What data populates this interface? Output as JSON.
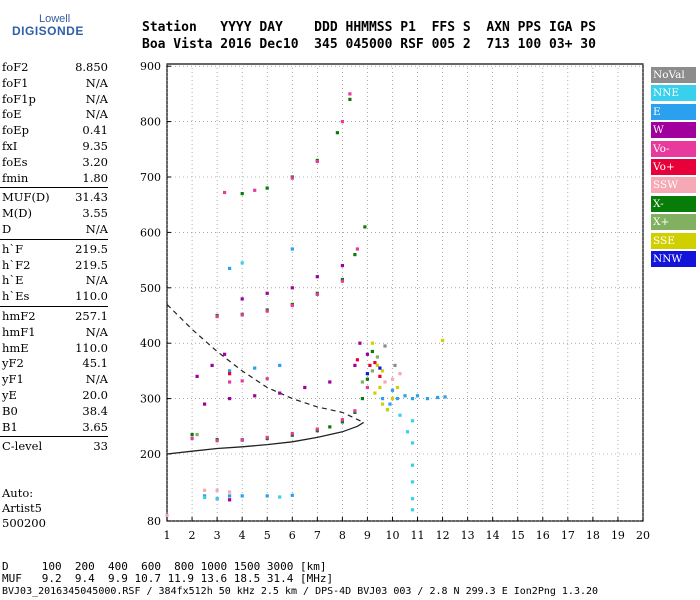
{
  "logo": {
    "line1": "Lowell",
    "line2": "DIGISONDE"
  },
  "header": {
    "row1": "Station   YYYY DAY    DDD HHMMSS P1  FFS S  AXN PPS IGA PS",
    "row2": "Boa Vista 2016 Dec10  345 045000 RSF 005 2  713 100 03+ 30"
  },
  "params": [
    {
      "name": "foF2",
      "value": "8.850"
    },
    {
      "name": "foF1",
      "value": "N/A"
    },
    {
      "name": "foF1p",
      "value": "N/A"
    },
    {
      "name": "foE",
      "value": "N/A"
    },
    {
      "name": "foEp",
      "value": "0.41"
    },
    {
      "name": "fxI",
      "value": "9.35"
    },
    {
      "name": "foEs",
      "value": "3.20"
    },
    {
      "name": "fmin",
      "value": "1.80"
    },
    {
      "name": "MUF(D)",
      "value": "31.43"
    },
    {
      "name": "M(D)",
      "value": "3.55"
    },
    {
      "name": "D",
      "value": "N/A"
    },
    {
      "name": "h`F",
      "value": "219.5"
    },
    {
      "name": "h`F2",
      "value": "219.5"
    },
    {
      "name": "h`E",
      "value": "N/A"
    },
    {
      "name": "h`Es",
      "value": "110.0"
    },
    {
      "name": "hmF2",
      "value": "257.1"
    },
    {
      "name": "hmF1",
      "value": "N/A"
    },
    {
      "name": "hmE",
      "value": "110.0"
    },
    {
      "name": "yF2",
      "value": "45.1"
    },
    {
      "name": "yF1",
      "value": "N/A"
    },
    {
      "name": "yE",
      "value": "20.0"
    },
    {
      "name": "B0",
      "value": "38.4"
    },
    {
      "name": "B1",
      "value": "3.65"
    },
    {
      "name": "C-level",
      "value": "33"
    }
  ],
  "autoscaling": {
    "line1": "Auto:",
    "line2": "Artist5",
    "line3": "500200"
  },
  "footer": {
    "d_row": "D     100  200  400  600  800 1000 1500 3000 [km]",
    "muf_row": "MUF   9.2  9.4  9.9 10.7 11.9 13.6 18.5 31.4 [MHz]",
    "info_row": "BVJ03_2016345045000.RSF / 384fx512h 50 kHz 2.5 km / DPS-4D BVJ03 003 / 2.8 N 299.3 E Ion2Png 1.3.20"
  },
  "legend": [
    {
      "label": "NoVal",
      "color": "#8c8c8c"
    },
    {
      "label": "NNE",
      "color": "#38d0ec"
    },
    {
      "label": "E",
      "color": "#2aa0ee"
    },
    {
      "label": "W",
      "color": "#a0009c"
    },
    {
      "label": "Vo-",
      "color": "#e83a9c"
    },
    {
      "label": "Vo+",
      "color": "#e8003a"
    },
    {
      "label": "SSW",
      "color": "#f6a8b4"
    },
    {
      "label": "X-",
      "color": "#087c08"
    },
    {
      "label": "X+",
      "color": "#80b060"
    },
    {
      "label": "SSE",
      "color": "#d0d000"
    },
    {
      "label": "NNW",
      "color": "#1414d8"
    }
  ],
  "chart_data": {
    "type": "scatter",
    "xlabel": "",
    "ylabel": "",
    "xlim": [
      1,
      20
    ],
    "ylim": [
      80,
      900
    ],
    "x_ticks": [
      "1",
      "2",
      "3",
      "4",
      "5",
      "6",
      "7",
      "8",
      "9",
      "10",
      "11",
      "12",
      "13",
      "14",
      "15",
      "16",
      "17",
      "18",
      "19",
      "20"
    ],
    "y_ticks": [
      "80",
      "200",
      "300",
      "400",
      "500",
      "600",
      "700",
      "800",
      "900"
    ],
    "grid": true,
    "legend_position": "right",
    "series": [
      {
        "name": "X-",
        "points": [
          [
            2.0,
            235
          ],
          [
            3.0,
            226
          ],
          [
            4.0,
            225
          ],
          [
            5.0,
            228
          ],
          [
            6.0,
            234
          ],
          [
            7.0,
            242
          ],
          [
            7.5,
            249
          ],
          [
            8.0,
            258
          ],
          [
            8.5,
            275
          ],
          [
            8.8,
            300
          ],
          [
            9.0,
            335
          ],
          [
            9.2,
            385
          ],
          [
            3.0,
            450
          ],
          [
            4.0,
            452
          ],
          [
            5.0,
            460
          ],
          [
            6.0,
            470
          ],
          [
            7.0,
            490
          ],
          [
            8.0,
            515
          ],
          [
            8.5,
            560
          ],
          [
            8.9,
            610
          ],
          [
            4.0,
            670
          ],
          [
            5.0,
            680
          ],
          [
            6.0,
            700
          ],
          [
            7.0,
            730
          ],
          [
            7.8,
            780
          ],
          [
            8.3,
            840
          ]
        ]
      },
      {
        "name": "Vo-",
        "points": [
          [
            2.0,
            228
          ],
          [
            3.0,
            224
          ],
          [
            4.0,
            226
          ],
          [
            5.0,
            230
          ],
          [
            6.0,
            237
          ],
          [
            7.0,
            245
          ],
          [
            8.0,
            262
          ],
          [
            8.5,
            278
          ],
          [
            9.0,
            320
          ],
          [
            3.0,
            448
          ],
          [
            4.0,
            451
          ],
          [
            5.0,
            458
          ],
          [
            6.0,
            468
          ],
          [
            7.0,
            488
          ],
          [
            8.0,
            512
          ],
          [
            8.6,
            570
          ],
          [
            3.5,
            330
          ],
          [
            4.0,
            332
          ],
          [
            5.0,
            336
          ],
          [
            3.3,
            672
          ],
          [
            4.5,
            676
          ],
          [
            6.0,
            698
          ],
          [
            7.0,
            728
          ],
          [
            8.0,
            800
          ],
          [
            8.3,
            850
          ]
        ]
      },
      {
        "name": "W",
        "points": [
          [
            2.5,
            290
          ],
          [
            3.5,
            300
          ],
          [
            4.5,
            305
          ],
          [
            5.5,
            310
          ],
          [
            6.5,
            320
          ],
          [
            7.5,
            330
          ],
          [
            8.5,
            360
          ],
          [
            2.2,
            340
          ],
          [
            2.8,
            360
          ],
          [
            3.3,
            380
          ],
          [
            4.0,
            480
          ],
          [
            5.0,
            490
          ],
          [
            6.0,
            500
          ],
          [
            7.0,
            520
          ],
          [
            8.0,
            540
          ],
          [
            3.0,
            120
          ],
          [
            3.5,
            118
          ],
          [
            9.0,
            380
          ],
          [
            8.7,
            400
          ]
        ]
      },
      {
        "name": "E",
        "points": [
          [
            9.6,
            300
          ],
          [
            9.9,
            290
          ],
          [
            10.2,
            300
          ],
          [
            10.5,
            305
          ],
          [
            10.8,
            300
          ],
          [
            11.0,
            305
          ],
          [
            11.4,
            300
          ],
          [
            11.8,
            302
          ],
          [
            12.1,
            303
          ],
          [
            10.0,
            315
          ],
          [
            2.5,
            125
          ],
          [
            3.5,
            125
          ],
          [
            4.0,
            125
          ],
          [
            5.0,
            125
          ],
          [
            6.0,
            126
          ],
          [
            3.5,
            350
          ],
          [
            4.5,
            355
          ],
          [
            5.5,
            360
          ],
          [
            3.5,
            535
          ],
          [
            6.0,
            570
          ]
        ]
      },
      {
        "name": "NNE",
        "points": [
          [
            10.8,
            260
          ],
          [
            10.8,
            220
          ],
          [
            10.8,
            180
          ],
          [
            10.8,
            150
          ],
          [
            10.8,
            120
          ],
          [
            10.8,
            100
          ],
          [
            10.3,
            270
          ],
          [
            10.6,
            240
          ],
          [
            9.8,
            280
          ],
          [
            2.5,
            122
          ],
          [
            3.0,
            120
          ],
          [
            5.5,
            123
          ],
          [
            4.0,
            545
          ]
        ]
      },
      {
        "name": "SSE",
        "points": [
          [
            9.3,
            310
          ],
          [
            9.5,
            320
          ],
          [
            9.6,
            290
          ],
          [
            9.8,
            280
          ],
          [
            10.0,
            300
          ],
          [
            9.4,
            360
          ],
          [
            9.6,
            350
          ],
          [
            10.2,
            320
          ],
          [
            12.0,
            405
          ],
          [
            9.2,
            400
          ]
        ]
      },
      {
        "name": "SSW",
        "points": [
          [
            9.5,
            340
          ],
          [
            9.7,
            330
          ],
          [
            10.0,
            335
          ],
          [
            10.3,
            345
          ],
          [
            2.5,
            135
          ],
          [
            3.0,
            135
          ],
          [
            3.5,
            132
          ],
          [
            1.0,
            90
          ]
        ]
      },
      {
        "name": "Vo+",
        "points": [
          [
            9.1,
            360
          ],
          [
            9.3,
            365
          ],
          [
            9.5,
            340
          ],
          [
            3.5,
            345
          ],
          [
            8.6,
            370
          ]
        ]
      },
      {
        "name": "X+",
        "points": [
          [
            9.2,
            350
          ],
          [
            9.4,
            375
          ],
          [
            2.2,
            235
          ],
          [
            8.8,
            330
          ]
        ]
      },
      {
        "name": "NNW",
        "points": [
          [
            9.5,
            355
          ],
          [
            9.0,
            345
          ]
        ]
      },
      {
        "name": "NoVal",
        "points": [
          [
            9.7,
            395
          ],
          [
            10.1,
            360
          ]
        ]
      }
    ],
    "profile_dashed": [
      [
        1.0,
        470
      ],
      [
        2.0,
        425
      ],
      [
        3.0,
        385
      ],
      [
        4.0,
        350
      ],
      [
        5.0,
        320
      ],
      [
        6.0,
        300
      ],
      [
        7.0,
        285
      ],
      [
        8.0,
        275
      ],
      [
        8.85,
        257
      ]
    ],
    "profile_solid": [
      [
        1.0,
        200
      ],
      [
        2.0,
        205
      ],
      [
        3.0,
        210
      ],
      [
        4.0,
        213
      ],
      [
        5.0,
        217
      ],
      [
        6.0,
        222
      ],
      [
        7.0,
        230
      ],
      [
        8.0,
        240
      ],
      [
        8.6,
        250
      ],
      [
        8.85,
        257
      ]
    ]
  }
}
